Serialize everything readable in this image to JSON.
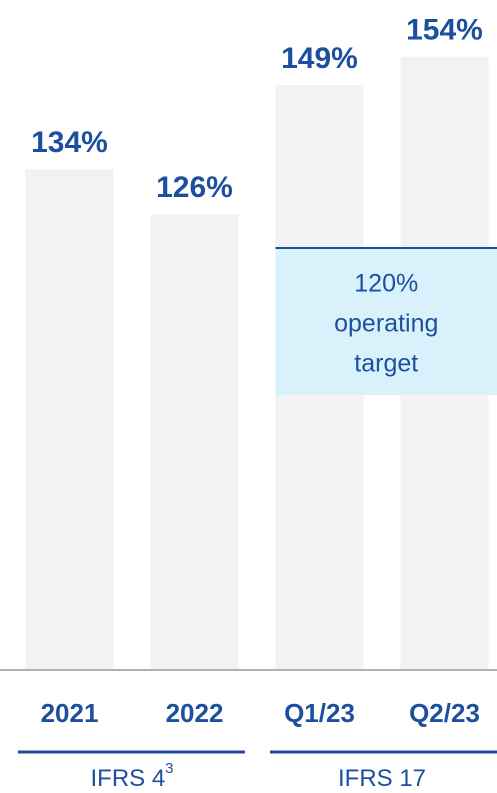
{
  "chart_data": {
    "type": "bar",
    "categories": [
      "2021",
      "2022",
      "Q1/23",
      "Q2/23"
    ],
    "values": [
      134,
      126,
      149,
      154
    ],
    "value_labels": [
      "134%",
      "126%",
      "149%",
      "154%"
    ],
    "color": "#f2f2f2",
    "label_color": "#1d4f9f",
    "ylim": [
      45,
      160
    ],
    "annotation": {
      "value": 120,
      "label": "120%",
      "text": [
        "operating",
        "target"
      ],
      "color": "#d9f1fb"
    },
    "groups": [
      {
        "label": "IFRS 4",
        "superscript": "3"
      },
      {
        "label": "IFRS 17"
      }
    ]
  }
}
